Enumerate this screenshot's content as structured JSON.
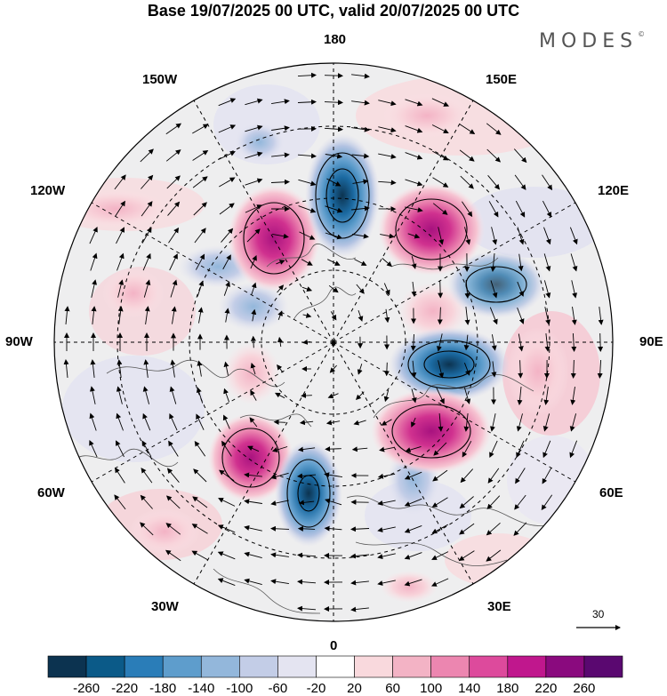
{
  "title": "Base 19/07/2025 00 UTC, valid 20/07/2025 00 UTC",
  "brand": "MODES",
  "brand_mark": "©",
  "longitude_labels": {
    "lon_180": "180",
    "lon_150w": "150W",
    "lon_150e": "150E",
    "lon_120w": "120W",
    "lon_120e": "120E",
    "lon_90w": "90W",
    "lon_90e": "90E",
    "lon_60w": "60W",
    "lon_60e": "60E",
    "lon_30w": "30W",
    "lon_30e": "30E",
    "lon_0": "0"
  },
  "reference_vector": {
    "label": "30",
    "magnitude": 30
  },
  "colorbar": {
    "ticks": [
      "-260",
      "-220",
      "-180",
      "-140",
      "-100",
      "-60",
      "-20",
      "20",
      "60",
      "100",
      "140",
      "180",
      "220",
      "260"
    ],
    "colors": [
      "#0c3350",
      "#0b5a88",
      "#2a7db8",
      "#5e9dcc",
      "#93b7db",
      "#c3cde7",
      "#e4e4f1",
      "#ffffff",
      "#f9d9dd",
      "#f3b3c5",
      "#ec86b0",
      "#dd4a9c",
      "#c0178d",
      "#8a0a7e",
      "#5a0870"
    ]
  },
  "anomaly_centers": [
    {
      "id": "blue-kamchatka",
      "value": -260
    },
    {
      "id": "magenta-alaska",
      "value": 220
    },
    {
      "id": "magenta-siberia-east",
      "value": 200
    },
    {
      "id": "blue-siberia-east",
      "value": -140
    },
    {
      "id": "magenta-siberia-central",
      "value": 120
    },
    {
      "id": "blue-siberia-central",
      "value": -240
    },
    {
      "id": "pink-central-asia",
      "value": 100
    },
    {
      "id": "magenta-europe-east",
      "value": 200
    },
    {
      "id": "blue-europe-west",
      "value": -100
    },
    {
      "id": "blue-atlantic",
      "value": -240
    },
    {
      "id": "magenta-greenland",
      "value": 240
    },
    {
      "id": "pink-canada-north",
      "value": 60
    },
    {
      "id": "blue-canada",
      "value": -140
    },
    {
      "id": "blue-hudson",
      "value": -100
    },
    {
      "id": "pink-pacific-north",
      "value": 60
    },
    {
      "id": "blue-pacific-north",
      "value": -60
    },
    {
      "id": "pink-pacific-east",
      "value": 60
    },
    {
      "id": "pink-canada-west",
      "value": 60
    },
    {
      "id": "pink-atlantic-south",
      "value": 60
    },
    {
      "id": "pink-north-africa",
      "value": 60
    },
    {
      "id": "pink-mongolia",
      "value": 60
    }
  ]
}
